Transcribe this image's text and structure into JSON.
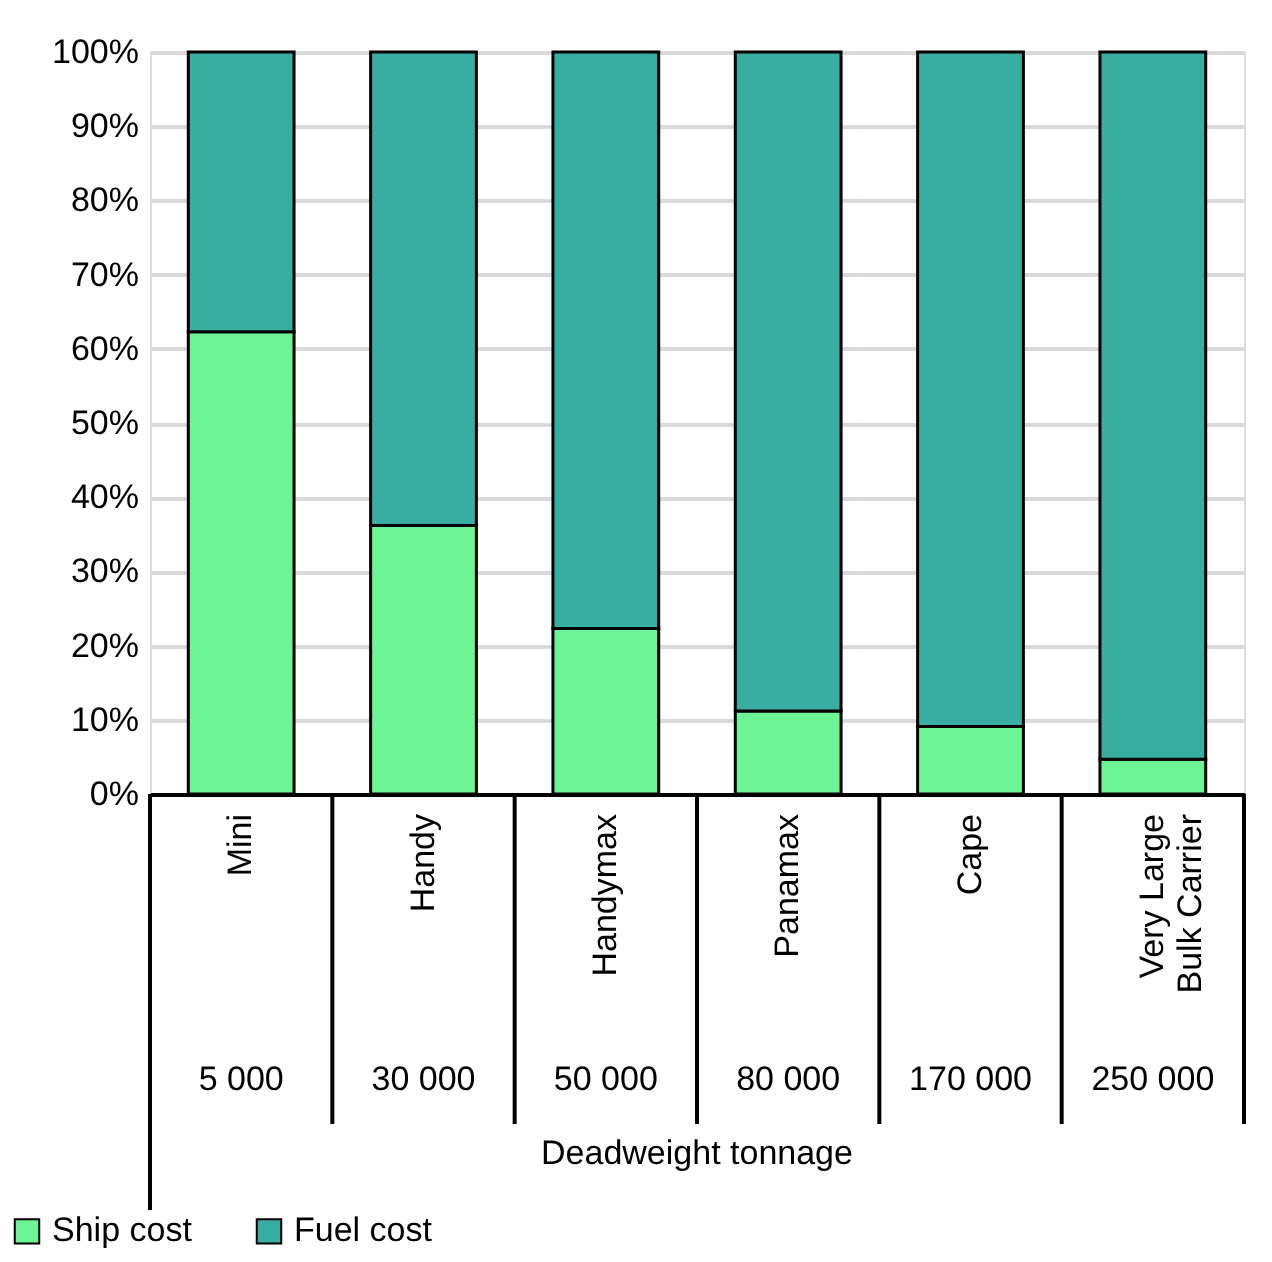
{
  "chart_data": {
    "type": "bar",
    "stacked": true,
    "categories": [
      "Mini",
      "Handy",
      "Handymax",
      "Panamax",
      "Cape",
      "Very Large Bulk Carrier"
    ],
    "series": [
      {
        "name": "Ship cost",
        "color": "#6cf495",
        "values": [
          62.3,
          36.2,
          22.3,
          11.2,
          9.1,
          4.7
        ]
      },
      {
        "name": "Fuel cost",
        "color": "#38ada2",
        "values": [
          37.7,
          63.8,
          77.7,
          88.8,
          90.9,
          95.3
        ]
      }
    ],
    "xlabel": "Deadweight tonnage",
    "ylim": [
      0,
      100
    ],
    "yticks": [
      {
        "value": 0,
        "label": "0%"
      },
      {
        "value": 10,
        "label": "10%"
      },
      {
        "value": 20,
        "label": "20%"
      },
      {
        "value": 30,
        "label": "30%"
      },
      {
        "value": 40,
        "label": "40%"
      },
      {
        "value": 50,
        "label": "50%"
      },
      {
        "value": 60,
        "label": "60%"
      },
      {
        "value": 70,
        "label": "70%"
      },
      {
        "value": 80,
        "label": "80%"
      },
      {
        "value": 90,
        "label": "90%"
      },
      {
        "value": 100,
        "label": "100%"
      }
    ],
    "grid": "y",
    "legend": "bottom left",
    "annotations": [
      "5 000",
      "30 000",
      "50 000",
      "80 000",
      "170 000",
      "250 000"
    ]
  }
}
